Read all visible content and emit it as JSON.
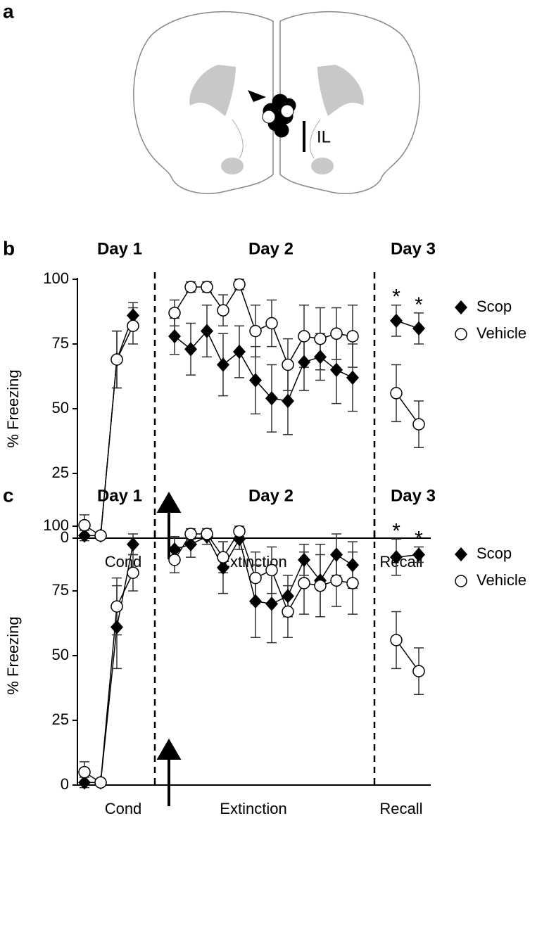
{
  "figure_a": {
    "panel_label": "a",
    "annotation": "IL"
  },
  "chart_data": [
    {
      "type": "line",
      "panel_label": "b",
      "y_label": "% Freezing",
      "ylim": [
        0,
        100
      ],
      "yticks": [
        0,
        25,
        50,
        75,
        100
      ],
      "legend": "right",
      "sections": [
        {
          "title": "Day 1",
          "label": "Cond",
          "categories": [
            null,
            null,
            null,
            null
          ]
        },
        {
          "title": "Day 2",
          "label": "Extinction",
          "categories": [
            null,
            null,
            null,
            null,
            null,
            null,
            null,
            null,
            null,
            null,
            null,
            null
          ]
        },
        {
          "title": "Day 3",
          "label": "Recall",
          "categories": [
            null,
            null
          ],
          "significance": [
            "*",
            "*"
          ]
        }
      ],
      "series": [
        {
          "name": "Scop",
          "marker": "diamond",
          "color": "#000000",
          "values": [
            1,
            1,
            69,
            86,
            78,
            73,
            80,
            67,
            72,
            61,
            54,
            53,
            68,
            70,
            65,
            62,
            84,
            81
          ],
          "errors": [
            2,
            1,
            11,
            5,
            7,
            10,
            10,
            12,
            10,
            13,
            13,
            13,
            11,
            9,
            13,
            13,
            6,
            6
          ]
        },
        {
          "name": "Vehicle",
          "marker": "circle",
          "color": "#ffffff",
          "values": [
            5,
            1,
            69,
            82,
            87,
            97,
            97,
            88,
            98,
            80,
            83,
            67,
            78,
            77,
            79,
            78,
            56,
            44
          ],
          "errors": [
            4,
            1,
            11,
            7,
            5,
            2,
            2,
            6,
            2,
            10,
            9,
            10,
            12,
            12,
            10,
            12,
            11,
            9
          ]
        }
      ]
    },
    {
      "type": "line",
      "panel_label": "c",
      "y_label": "% Freezing",
      "ylim": [
        0,
        100
      ],
      "yticks": [
        0,
        25,
        50,
        75,
        100
      ],
      "legend": "right",
      "sections": [
        {
          "title": "Day 1",
          "label": "Cond",
          "categories": [
            null,
            null,
            null,
            null
          ]
        },
        {
          "title": "Day 2",
          "label": "Extinction",
          "categories": [
            null,
            null,
            null,
            null,
            null,
            null,
            null,
            null,
            null,
            null,
            null,
            null
          ]
        },
        {
          "title": "Day 3",
          "label": "Recall",
          "categories": [
            null,
            null
          ],
          "significance": [
            "*",
            "*"
          ]
        }
      ],
      "series": [
        {
          "name": "Scop",
          "marker": "diamond",
          "color": "#000000",
          "values": [
            1,
            1,
            61,
            93,
            91,
            93,
            96,
            84,
            95,
            71,
            70,
            73,
            87,
            79,
            89,
            85,
            88,
            89
          ],
          "errors": [
            2,
            1,
            16,
            4,
            5,
            5,
            3,
            10,
            4,
            14,
            15,
            8,
            6,
            14,
            8,
            9,
            7,
            3
          ]
        },
        {
          "name": "Vehicle",
          "marker": "circle",
          "color": "#ffffff",
          "values": [
            5,
            1,
            69,
            82,
            87,
            97,
            97,
            88,
            98,
            80,
            83,
            67,
            78,
            77,
            79,
            78,
            56,
            44
          ],
          "errors": [
            4,
            1,
            11,
            7,
            5,
            2,
            2,
            6,
            2,
            10,
            9,
            10,
            12,
            12,
            10,
            12,
            11,
            9
          ]
        }
      ]
    }
  ]
}
